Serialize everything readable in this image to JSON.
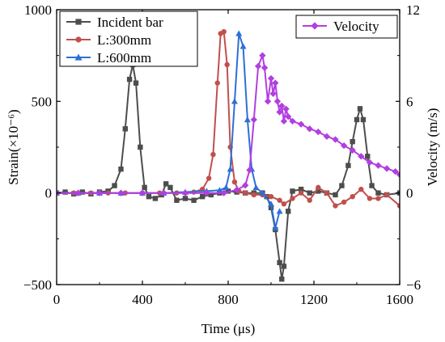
{
  "chart_data": {
    "type": "line",
    "xlabel": "Time (μs)",
    "ylabel_left": "Strain(×10⁻⁶)",
    "ylabel_right": "Velocity (m/s)",
    "xlim": [
      0,
      1600
    ],
    "ylim_left": [
      -500,
      1000
    ],
    "ylim_right": [
      -6,
      12
    ],
    "xticks": [
      0,
      400,
      800,
      1200,
      1600
    ],
    "yticks_left": [
      -500,
      0,
      500,
      1000
    ],
    "yticks_right": [
      -6,
      0,
      6,
      12
    ],
    "xtick_labels": [
      "0",
      "400",
      "800",
      "1200",
      "1600"
    ],
    "ytick_labels_left": [
      "−500",
      "0",
      "500",
      "1000"
    ],
    "ytick_labels_right": [
      "−6",
      "0",
      "6",
      "12"
    ],
    "grid": false,
    "legends": [
      {
        "placement": "top-left",
        "entries": [
          0,
          1,
          2
        ]
      },
      {
        "placement": "top-right",
        "entries": [
          3
        ]
      }
    ],
    "series": [
      {
        "name": "Incident bar",
        "axis": "left",
        "color": "#4d4d4d",
        "marker": "square",
        "x": [
          0,
          40,
          80,
          120,
          160,
          200,
          240,
          270,
          300,
          320,
          340,
          355,
          370,
          390,
          410,
          430,
          460,
          490,
          510,
          530,
          560,
          600,
          640,
          680,
          720,
          760,
          800,
          840,
          880,
          920,
          960,
          980,
          1000,
          1020,
          1040,
          1050,
          1060,
          1080,
          1100,
          1140,
          1180,
          1220,
          1260,
          1300,
          1330,
          1360,
          1380,
          1400,
          1415,
          1430,
          1450,
          1470,
          1500,
          1540,
          1600
        ],
        "y": [
          0,
          5,
          -5,
          5,
          -5,
          5,
          10,
          40,
          130,
          350,
          620,
          700,
          600,
          250,
          30,
          -20,
          -30,
          -10,
          50,
          30,
          -40,
          -30,
          -40,
          -20,
          -10,
          0,
          10,
          5,
          0,
          0,
          0,
          -20,
          -80,
          -200,
          -380,
          -470,
          -400,
          -100,
          10,
          20,
          0,
          10,
          0,
          -10,
          40,
          150,
          280,
          400,
          460,
          400,
          200,
          40,
          0,
          -10,
          0
        ]
      },
      {
        "name": "L:300mm",
        "axis": "left",
        "color": "#c0504d",
        "marker": "circle",
        "x": [
          0,
          80,
          160,
          240,
          320,
          400,
          480,
          560,
          640,
          680,
          710,
          730,
          750,
          765,
          780,
          795,
          810,
          830,
          850,
          880,
          920,
          960,
          1000,
          1040,
          1060,
          1100,
          1140,
          1180,
          1220,
          1260,
          1300,
          1340,
          1380,
          1420,
          1460,
          1500,
          1540,
          1600
        ],
        "y": [
          0,
          0,
          0,
          0,
          0,
          0,
          0,
          0,
          5,
          20,
          80,
          210,
          600,
          870,
          880,
          700,
          250,
          60,
          10,
          0,
          -10,
          -10,
          -20,
          -40,
          -60,
          -30,
          0,
          -40,
          30,
          0,
          -70,
          -50,
          -20,
          20,
          -30,
          -30,
          -10,
          -70
        ]
      },
      {
        "name": "L:600mm",
        "axis": "left",
        "color": "#2e6fd6",
        "marker": "triangle",
        "x": [
          0,
          100,
          200,
          300,
          400,
          500,
          600,
          700,
          760,
          790,
          810,
          830,
          850,
          870,
          890,
          910,
          930,
          960,
          1000,
          1020,
          1040
        ],
        "y": [
          0,
          0,
          0,
          0,
          0,
          0,
          5,
          10,
          15,
          30,
          130,
          500,
          870,
          800,
          400,
          130,
          30,
          0,
          -60,
          -190,
          -100
        ]
      },
      {
        "name": "Velocity",
        "axis": "right",
        "color": "#b23ee0",
        "marker": "diamond",
        "x": [
          0,
          100,
          200,
          300,
          400,
          500,
          600,
          700,
          780,
          840,
          880,
          900,
          920,
          940,
          960,
          970,
          985,
          1000,
          1010,
          1020,
          1030,
          1040,
          1050,
          1060,
          1070,
          1080,
          1100,
          1140,
          1180,
          1220,
          1260,
          1300,
          1340,
          1380,
          1420,
          1460,
          1500,
          1540,
          1580,
          1600
        ],
        "y": [
          0,
          0,
          0,
          0,
          0,
          0,
          0,
          0,
          0,
          0.2,
          0.5,
          1.5,
          4.8,
          8.3,
          9.0,
          8.2,
          6.0,
          7.5,
          6.5,
          7.2,
          6.0,
          5.3,
          5.7,
          4.7,
          5.5,
          5.0,
          4.7,
          4.5,
          4.2,
          4.0,
          3.7,
          3.5,
          3.1,
          2.8,
          2.4,
          2.0,
          1.8,
          1.6,
          1.4,
          1.2
        ]
      }
    ]
  }
}
